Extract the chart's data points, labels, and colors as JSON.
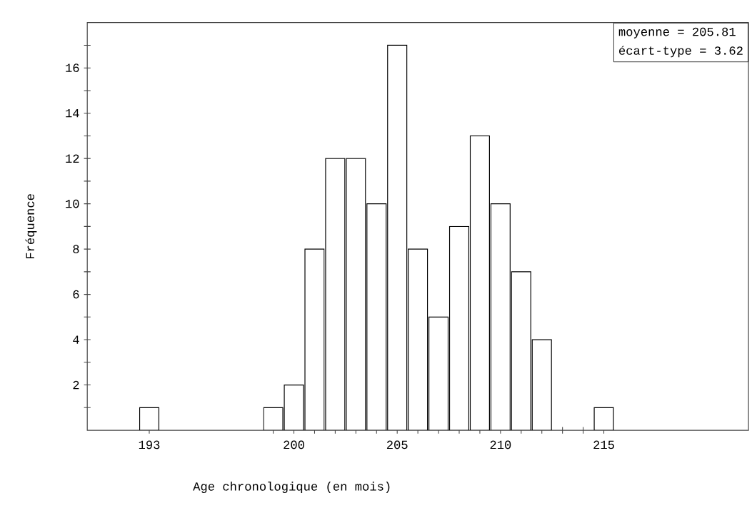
{
  "chart_data": {
    "type": "histogram",
    "bins": [
      192.5,
      193.5,
      194.5,
      195.5,
      196.5,
      197.5,
      198.5,
      199.5,
      200.5,
      201.5,
      202.5,
      203.5,
      204.5,
      205.5,
      206.5,
      207.5,
      208.5,
      209.5,
      210.5,
      211.5,
      212.5,
      213.5,
      214.5,
      215.5
    ],
    "values": [
      1,
      0,
      0,
      0,
      0,
      0,
      1,
      2,
      8,
      12,
      12,
      10,
      17,
      8,
      5,
      9,
      13,
      10,
      7,
      4,
      0,
      0,
      1
    ],
    "color": "#ffffff",
    "xlim": [
      190,
      222
    ],
    "ylim": [
      0,
      18
    ],
    "xticks": [
      193,
      {
        "value": 199,
        "label": null
      },
      200,
      {
        "value": 201,
        "label": null
      },
      {
        "value": 202,
        "label": null
      },
      {
        "value": 203,
        "label": null
      },
      {
        "value": 204,
        "label": null
      },
      205,
      {
        "value": 206,
        "label": null
      },
      {
        "value": 207,
        "label": null
      },
      {
        "value": 208,
        "label": null
      },
      {
        "value": 209,
        "label": null
      },
      210,
      {
        "value": 211,
        "label": null
      },
      {
        "value": 212,
        "label": null
      },
      {
        "value": 213,
        "label": null
      },
      {
        "value": 214,
        "label": null
      },
      215
    ],
    "yticks": [
      {
        "value": 1,
        "label": null
      },
      2,
      {
        "value": 3,
        "label": null
      },
      4,
      {
        "value": 5,
        "label": null
      },
      6,
      {
        "value": 7,
        "label": null
      },
      8,
      {
        "value": 9,
        "label": null
      },
      10,
      {
        "value": 11,
        "label": null
      },
      12,
      {
        "value": 13,
        "label": null
      },
      14,
      {
        "value": 15,
        "label": null
      },
      16,
      {
        "value": 17,
        "label": null
      }
    ],
    "xlabel": "Age chronologique (en mois)",
    "ylabel": "Fréquence",
    "annotations": [
      "moyenne = 205.81",
      "écart-type = 3.62"
    ]
  }
}
